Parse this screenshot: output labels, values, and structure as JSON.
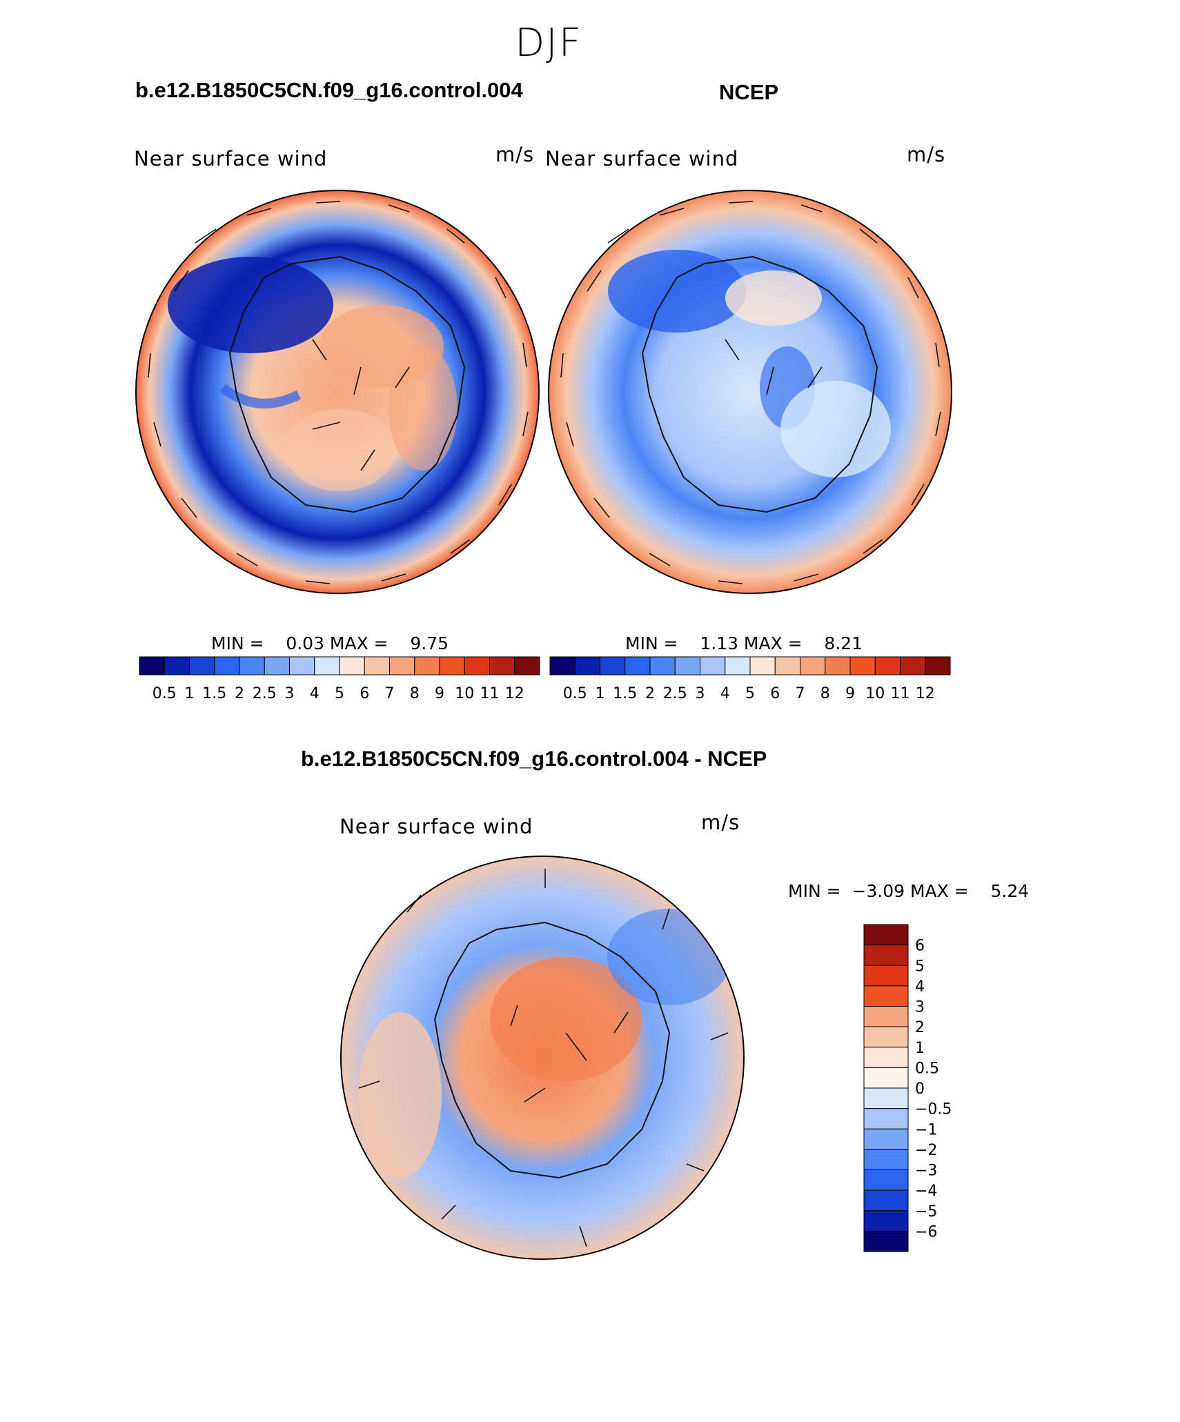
{
  "figure": {
    "season_title": "DJF",
    "bottom_title": "b.e12.B1850C5CN.f09_g16.control.004 - NCEP"
  },
  "panels": [
    {
      "id": "model",
      "case_title": "b.e12.B1850C5CN.f09_g16.control.004",
      "variable": "Near surface wind",
      "units": "m/s",
      "min_max_text": "MIN =    0.03 MAX =    9.75"
    },
    {
      "id": "obs",
      "case_title": "NCEP",
      "variable": "Near surface wind",
      "units": "m/s",
      "min_max_text": "MIN =    1.13 MAX =    8.21"
    },
    {
      "id": "diff",
      "variable": "Near surface wind",
      "units": "m/s",
      "min_max_text": "MIN =  −3.09 MAX =    5.24"
    }
  ],
  "chart_data": [
    {
      "type": "heatmap",
      "subtype": "polar-stereographic filled contour with wind vectors (Southern Hemisphere)",
      "title": "Near surface wind",
      "units": "m/s",
      "min": 0.03,
      "max": 9.75,
      "contour_levels": [
        "0.5",
        "1",
        "1.5",
        "2",
        "2.5",
        "3",
        "4",
        "5",
        "6",
        "7",
        "8",
        "9",
        "10",
        "11",
        "12"
      ],
      "colors": [
        "#08006e",
        "#0a1fae",
        "#1a44d6",
        "#2a63ec",
        "#4b85f4",
        "#7aa6f7",
        "#a9c6fa",
        "#d6e8fc",
        "#fbe6d8",
        "#f8c7aa",
        "#f6a57d",
        "#f38050",
        "#ee5525",
        "#e1361a",
        "#b52113",
        "#7b0b09"
      ]
    },
    {
      "type": "heatmap",
      "subtype": "polar-stereographic filled contour with wind vectors (Southern Hemisphere)",
      "title": "Near surface wind",
      "units": "m/s",
      "min": 1.13,
      "max": 8.21,
      "contour_levels": [
        "0.5",
        "1",
        "1.5",
        "2",
        "2.5",
        "3",
        "4",
        "5",
        "6",
        "7",
        "8",
        "9",
        "10",
        "11",
        "12"
      ],
      "colors": [
        "#08006e",
        "#0a1fae",
        "#1a44d6",
        "#2a63ec",
        "#4b85f4",
        "#7aa6f7",
        "#a9c6fa",
        "#d6e8fc",
        "#fbe6d8",
        "#f8c7aa",
        "#f6a57d",
        "#f38050",
        "#ee5525",
        "#e1361a",
        "#b52113",
        "#7b0b09"
      ]
    },
    {
      "type": "heatmap",
      "subtype": "difference, polar-stereographic filled contour with wind vectors",
      "title": "Near surface wind",
      "units": "m/s",
      "min": -3.09,
      "max": 5.24,
      "contour_levels": [
        "6",
        "5",
        "4",
        "3",
        "2",
        "1",
        "0.5",
        "0",
        "−0.5",
        "−1",
        "−2",
        "−3",
        "−4",
        "−5",
        "−6"
      ],
      "colors": [
        "#7b0b09",
        "#b52113",
        "#e1361a",
        "#ee5525",
        "#f6a57d",
        "#f8c7aa",
        "#fbe6d8",
        "#fdf3ea",
        "#d6e8fc",
        "#a9c6fa",
        "#7aa6f7",
        "#4b85f4",
        "#2a63ec",
        "#1a44d6",
        "#0a1fae",
        "#08006e"
      ]
    }
  ]
}
